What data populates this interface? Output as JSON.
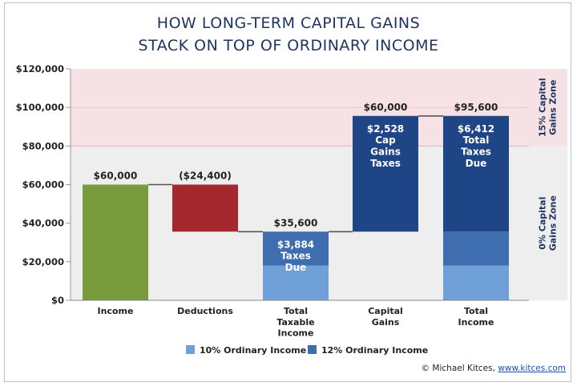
{
  "title_line1": "HOW LONG-TERM CAPITAL GAINS",
  "title_line2": "STACK ON TOP OF ORDINARY INCOME",
  "credit_prefix": "© Michael Kitces, ",
  "credit_link": "www.kitces.com",
  "colors": {
    "income": "#7a9a3e",
    "deductions": "#a5282e",
    "ordinary_10": "#6fa0d8",
    "ordinary_12": "#3f6eb0",
    "capital_gains": "#1e4585",
    "zone_15": "#f6e2e4",
    "zone_0": "#eeeeee",
    "text": "#1f3560"
  },
  "chart_data": {
    "type": "bar",
    "subtype": "waterfall",
    "ylim": [
      0,
      120000
    ],
    "yticks": [
      {
        "value": 0,
        "label": "$0"
      },
      {
        "value": 20000,
        "label": "$20,000"
      },
      {
        "value": 40000,
        "label": "$40,000"
      },
      {
        "value": 60000,
        "label": "$60,000"
      },
      {
        "value": 80000,
        "label": "$80,000"
      },
      {
        "value": 100000,
        "label": "$100,000"
      },
      {
        "value": 120000,
        "label": "$120,000"
      }
    ],
    "zones": [
      {
        "label": "15% Capital Gains Zone",
        "line1": "15% Capital",
        "line2": "Gains Zone",
        "from": 80000,
        "to": 120000,
        "color_key": "zone_15"
      },
      {
        "label": "0% Capital Gains Zone",
        "line1": "0% Capital",
        "line2": "Gains Zone",
        "from": 0,
        "to": 80000,
        "color_key": "zone_0"
      }
    ],
    "categories": [
      {
        "label_lines": [
          "Income"
        ]
      },
      {
        "label_lines": [
          "Deductions"
        ]
      },
      {
        "label_lines": [
          "Total",
          "Taxable",
          "Income"
        ]
      },
      {
        "label_lines": [
          "Capital",
          "Gains"
        ]
      },
      {
        "label_lines": [
          "Total",
          "Income"
        ]
      }
    ],
    "bars": [
      {
        "category": 0,
        "segments": [
          {
            "from": 0,
            "to": 60000,
            "color_key": "income"
          }
        ],
        "top_label": "$60,000",
        "inner_label": []
      },
      {
        "category": 1,
        "segments": [
          {
            "from": 35600,
            "to": 60000,
            "color_key": "deductions"
          }
        ],
        "top_label": "($24,400)",
        "inner_label": []
      },
      {
        "category": 2,
        "segments": [
          {
            "from": 0,
            "to": 18000,
            "color_key": "ordinary_10"
          },
          {
            "from": 18000,
            "to": 35600,
            "color_key": "ordinary_12"
          }
        ],
        "top_label": "$35,600",
        "inner_label": [
          "$3,884",
          "Taxes",
          "Due"
        ]
      },
      {
        "category": 3,
        "segments": [
          {
            "from": 35600,
            "to": 95600,
            "color_key": "capital_gains"
          }
        ],
        "top_label": "$60,000",
        "inner_label": [
          "$2,528",
          "Cap",
          "Gains",
          "Taxes"
        ]
      },
      {
        "category": 4,
        "segments": [
          {
            "from": 0,
            "to": 18000,
            "color_key": "ordinary_10"
          },
          {
            "from": 18000,
            "to": 35600,
            "color_key": "ordinary_12"
          },
          {
            "from": 35600,
            "to": 95600,
            "color_key": "capital_gains"
          }
        ],
        "top_label": "$95,600",
        "inner_label": [
          "$6,412",
          "Total",
          "Taxes",
          "Due"
        ]
      }
    ],
    "connectors": [
      60000,
      35600,
      35600,
      95600
    ],
    "legend": [
      {
        "label": "10% Ordinary Income",
        "color_key": "ordinary_10"
      },
      {
        "label": "12% Ordinary Income",
        "color_key": "ordinary_12"
      }
    ],
    "legend_position": "bottom",
    "grid": false
  }
}
